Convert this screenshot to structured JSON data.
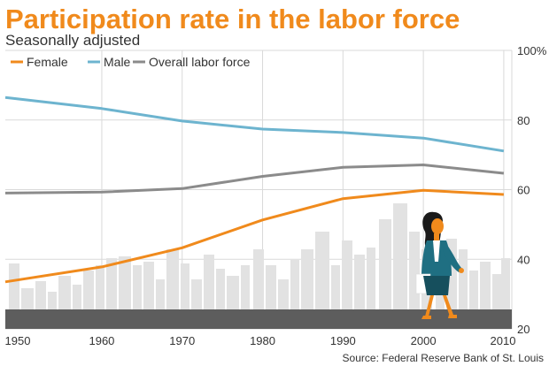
{
  "header": {
    "title": "Participation rate in the labor force",
    "subtitle": "Seasonally adjusted"
  },
  "footer": {
    "source": "Source: Federal Reserve Bank of St. Louis"
  },
  "colors": {
    "female": "#f08a1c",
    "male": "#6db4cf",
    "overall": "#8b8b8b",
    "grid": "#d9d9d9",
    "skyline": "#e2e2e2",
    "ground": "#5d5d5d"
  },
  "chart_data": {
    "type": "line",
    "title": "Participation rate in the labor force",
    "subtitle": "Seasonally adjusted",
    "x": [
      1948,
      1960,
      1970,
      1980,
      1990,
      2000,
      2010
    ],
    "xlim": [
      1948,
      2011
    ],
    "ylim": [
      20,
      100
    ],
    "x_ticks": [
      "1950",
      "1960",
      "1970",
      "1980",
      "1990",
      "2000",
      "2010"
    ],
    "y_ticks": [
      "20",
      "40",
      "60",
      "80",
      "100%"
    ],
    "grid": true,
    "legend_position": "top-left",
    "series": [
      {
        "name": "Female",
        "values": [
          33.5,
          37.8,
          43.3,
          51.3,
          57.4,
          59.8,
          58.6
        ]
      },
      {
        "name": "Male",
        "values": [
          86.5,
          83.3,
          79.7,
          77.4,
          76.4,
          74.8,
          71.1
        ]
      },
      {
        "name": "Overall labor force",
        "values": [
          59.0,
          59.3,
          60.3,
          63.8,
          66.4,
          67.1,
          64.7
        ]
      }
    ]
  }
}
